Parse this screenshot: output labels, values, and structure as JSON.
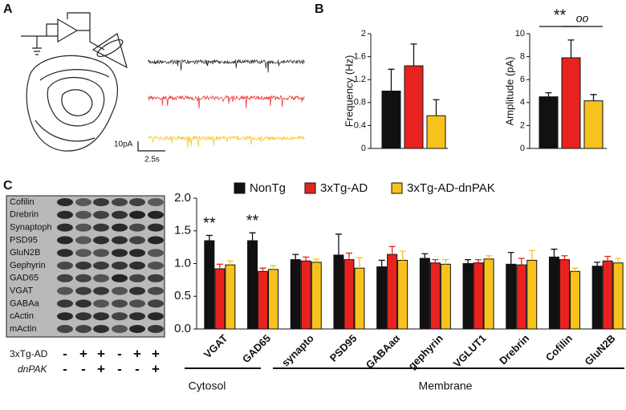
{
  "panel_labels": [
    "A",
    "B",
    "C"
  ],
  "scale_bar": {
    "current": "10pA",
    "time": "2.5s"
  },
  "blot": {
    "rows": [
      "Cofilin",
      "Drebrin",
      "Synaptoph",
      "PSD95",
      "GluN2B",
      "Gephyrin",
      "GAD65",
      "VGAT",
      "GABAa",
      "cActin",
      "mActin"
    ],
    "conditions": [
      {
        "label": "3xTg-AD",
        "signs": [
          "-",
          "+",
          "+",
          "-",
          "+",
          "+"
        ]
      },
      {
        "label": "dnPAK",
        "signs": [
          "-",
          "-",
          "+",
          "-",
          "-",
          "+"
        ]
      }
    ]
  },
  "chart_data": [
    {
      "type": "bar",
      "ylabel": "Frequency (Hz)",
      "categories": [
        null,
        null,
        null
      ],
      "values": [
        1.0,
        1.44,
        0.57
      ],
      "errors": [
        0.38,
        0.38,
        0.28
      ],
      "colors": [
        "#111111",
        "#e8231f",
        "#f7c21c"
      ],
      "ylim": [
        0,
        2
      ],
      "yticks": [
        0,
        0.4,
        0.8,
        1.2,
        1.6,
        2
      ]
    },
    {
      "type": "bar",
      "ylabel": "Amplitude (pA)",
      "categories": [
        null,
        null,
        null
      ],
      "values": [
        4.5,
        7.9,
        4.15
      ],
      "errors": [
        0.35,
        1.55,
        0.55
      ],
      "colors": [
        "#111111",
        "#e8231f",
        "#f7c21c"
      ],
      "ylim": [
        0,
        10
      ],
      "yticks": [
        0,
        2,
        4,
        6,
        8,
        10
      ],
      "annotations": [
        "**",
        "oo"
      ]
    },
    {
      "type": "grouped-bar",
      "categories": [
        "VGAT",
        "GAD65",
        "synapto",
        "PSD95",
        "GABAaα",
        "gephyrin",
        "VGLUT1",
        "Drebrin",
        "Cofilin",
        "GluN2B"
      ],
      "series": [
        {
          "name": "NonTg",
          "color": "#111111",
          "values": [
            1.35,
            1.35,
            1.06,
            1.13,
            0.95,
            1.08,
            1.0,
            0.99,
            1.1,
            0.96
          ],
          "errors": [
            0.08,
            0.12,
            0.08,
            0.32,
            0.1,
            0.07,
            0.06,
            0.18,
            0.12,
            0.06
          ]
        },
        {
          "name": "3xTg-AD",
          "color": "#e8231f",
          "values": [
            0.92,
            0.88,
            1.04,
            1.06,
            1.14,
            1.01,
            1.01,
            0.98,
            1.06,
            1.04
          ],
          "errors": [
            0.07,
            0.05,
            0.06,
            0.1,
            0.12,
            0.05,
            0.05,
            0.1,
            0.06,
            0.07
          ]
        },
        {
          "name": "3xTg-AD-dnPAK",
          "color": "#f7c21c",
          "values": [
            0.98,
            0.91,
            1.02,
            0.93,
            1.05,
            0.99,
            1.07,
            1.05,
            0.88,
            1.01
          ],
          "errors": [
            0.06,
            0.06,
            0.05,
            0.16,
            0.14,
            0.07,
            0.05,
            0.15,
            0.05,
            0.07
          ]
        }
      ],
      "ylim": [
        0,
        2
      ],
      "yticks": [
        {
          "value": 0,
          "label": "0.0"
        },
        0.5,
        {
          "value": 1,
          "label": "1.0"
        },
        1.5,
        {
          "value": 2,
          "label": "2.0"
        }
      ],
      "annotations": [
        "**",
        "**"
      ],
      "groups": [
        "Cytosol",
        "Membrane"
      ]
    }
  ]
}
